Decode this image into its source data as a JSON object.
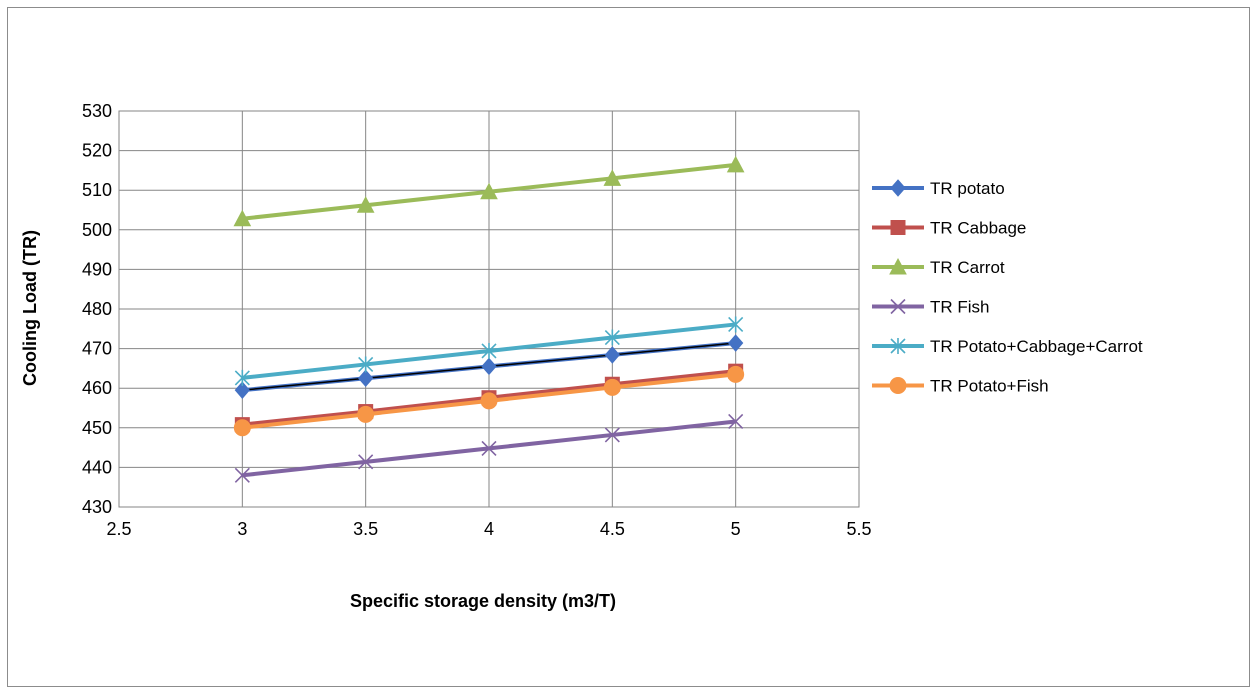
{
  "chart_data": {
    "type": "line",
    "title": "",
    "xlabel": "Specific storage density (m3/T)",
    "ylabel": "Cooling Load (TR)",
    "xlim": [
      2.5,
      5.5
    ],
    "ylim": [
      430,
      530
    ],
    "x_ticks": [
      "2.5",
      "3",
      "3.5",
      "4",
      "4.5",
      "5",
      "5.5"
    ],
    "y_ticks": [
      "430",
      "440",
      "450",
      "460",
      "470",
      "480",
      "490",
      "500",
      "510",
      "520",
      "530"
    ],
    "grid": true,
    "legend_position": "right",
    "x": [
      3,
      3.5,
      4,
      4.5,
      5
    ],
    "series": [
      {
        "name": "TR potato",
        "values": [
          459.5,
          462.5,
          465.5,
          468.4,
          471.4
        ],
        "color": "#4472C4",
        "marker": "diamond"
      },
      {
        "name": "TR Cabbage",
        "values": [
          450.8,
          454.1,
          457.6,
          461.0,
          464.3
        ],
        "color": "#C0504D",
        "marker": "square"
      },
      {
        "name": "TR Carrot",
        "values": [
          502.8,
          506.2,
          509.6,
          513.0,
          516.4
        ],
        "color": "#9BBB59",
        "marker": "triangle"
      },
      {
        "name": "TR Fish",
        "values": [
          438.0,
          441.4,
          444.8,
          448.2,
          451.6
        ],
        "color": "#8064A2",
        "marker": "x"
      },
      {
        "name": "TR Potato+Cabbage+Carrot",
        "values": [
          462.6,
          466.0,
          469.4,
          472.8,
          476.1
        ],
        "color": "#4BACC6",
        "marker": "star"
      },
      {
        "name": "TR Potato+Fish",
        "values": [
          450.0,
          453.4,
          456.8,
          460.2,
          463.5
        ],
        "color": "#F79646",
        "marker": "circle"
      }
    ]
  }
}
